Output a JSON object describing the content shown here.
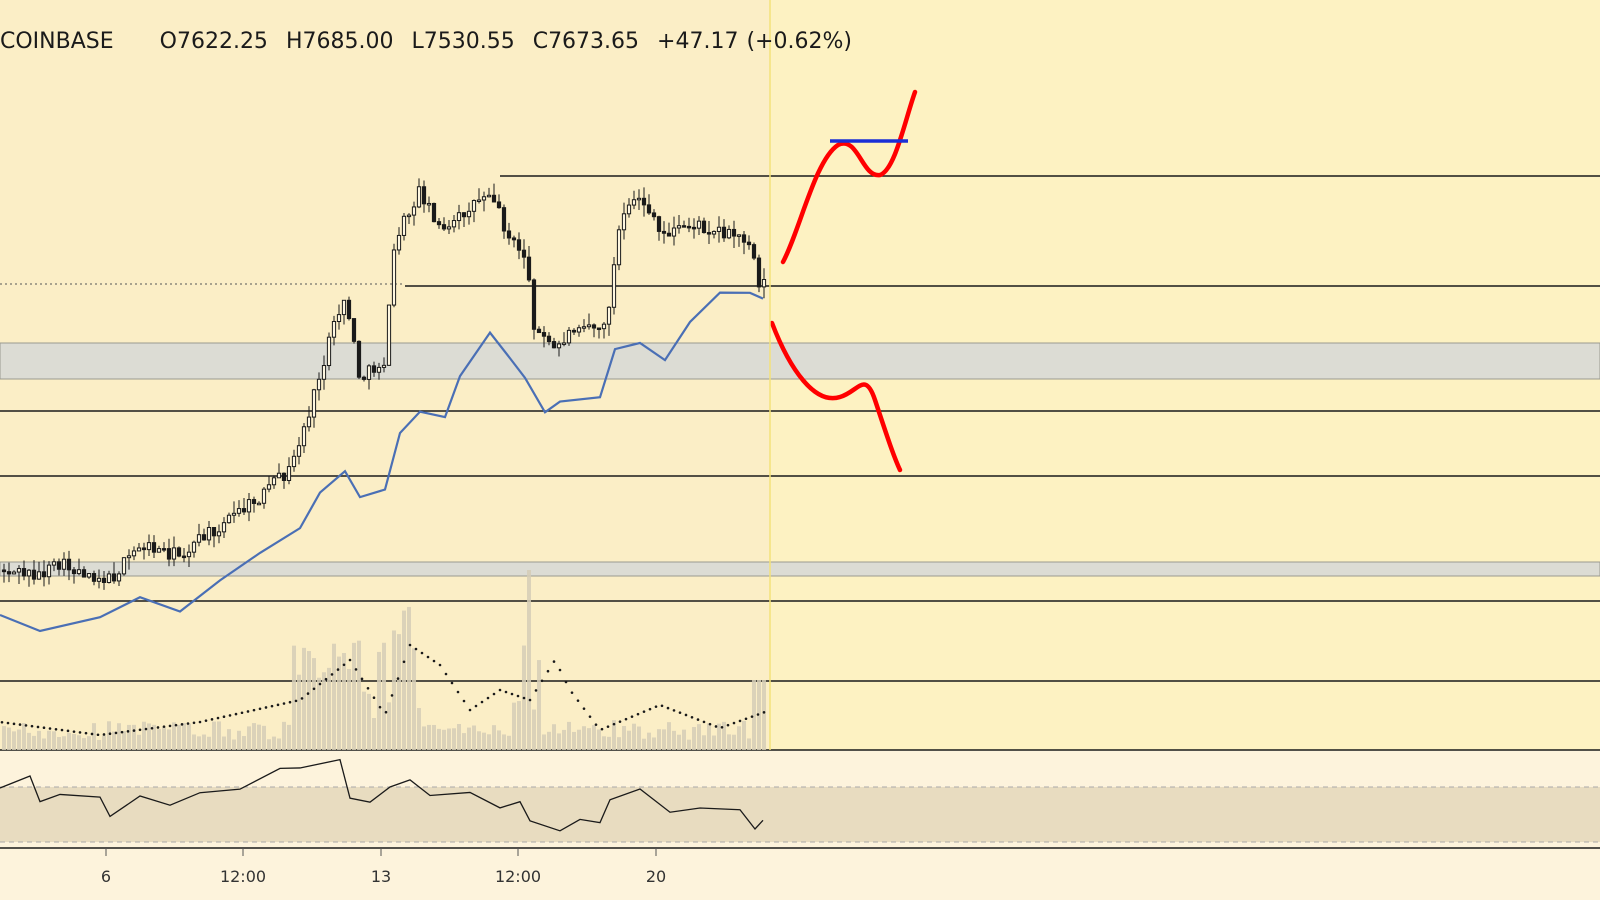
{
  "header": {
    "exchange": "COINBASE",
    "open": "O7622.25",
    "high": "H7685.00",
    "low": "L7530.55",
    "close": "C7673.65",
    "change": "+47.17",
    "change_pct": "(+0.62%)"
  },
  "colors": {
    "background_history": "#fbeec6",
    "background_projection": "#fdf2c2",
    "lower_bg": "#fdf3dc",
    "candle": "#1a1a1a",
    "ma_line": "#4a6fb5",
    "volume": "#d5cdb6",
    "projection": "#ff0000",
    "target_line": "#1a2fd6",
    "zone": "#dcdcd4",
    "grid_line": "#1a1a1a",
    "rsi_band": "#e8dcc0"
  },
  "chart_data": {
    "type": "candlestick",
    "symbol": "COINBASE",
    "ohlc": {
      "open": 7622.25,
      "high": 7685.0,
      "low": 7530.55,
      "close": 7673.65,
      "change": 47.17,
      "change_pct": 0.62
    },
    "x_ticks": [
      "6",
      "12:00",
      "13",
      "12:00",
      "20"
    ],
    "horizontal_lines": [
      "resistance",
      "support",
      "level-1",
      "level-2",
      "level-3",
      "level-4",
      "level-5"
    ],
    "zones": [
      "upper-zone",
      "lower-zone"
    ],
    "projection": {
      "bullish_path": "up-through-resistance",
      "bearish_path": "down-through-zone"
    },
    "grid": false,
    "legend": "none"
  }
}
